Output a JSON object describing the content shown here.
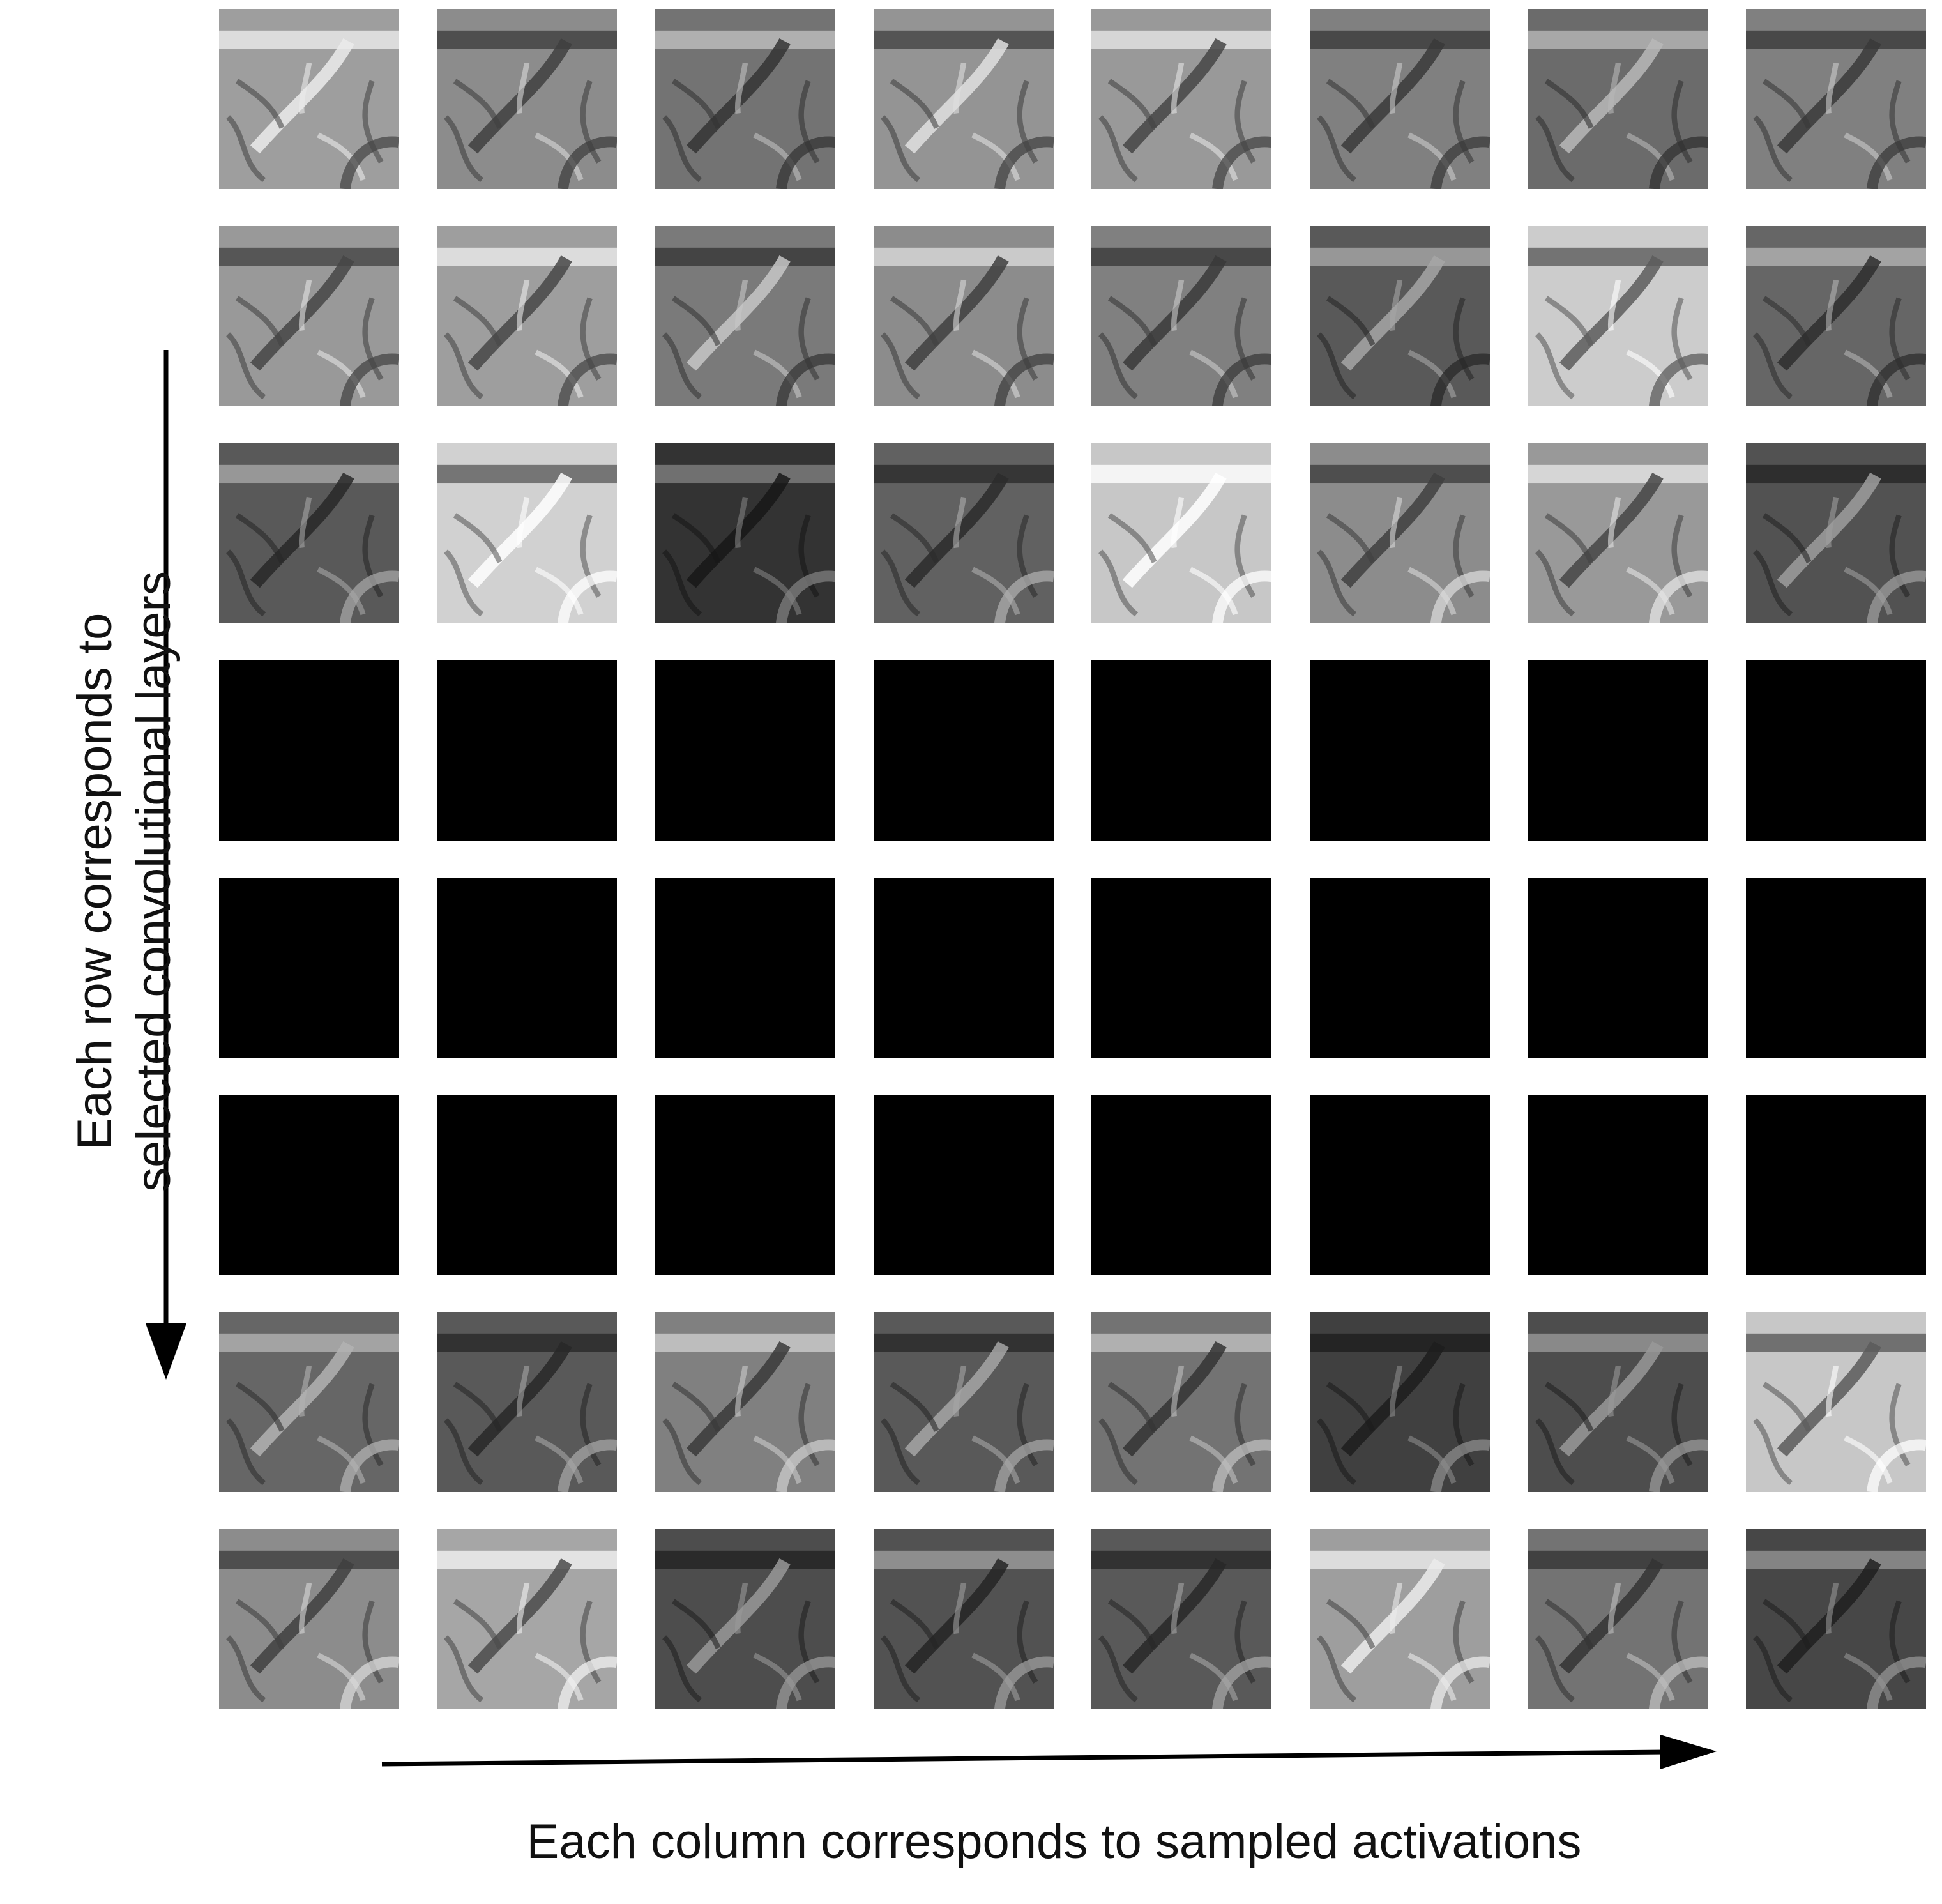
{
  "labels": {
    "rows_line1": "Each row corresponds to",
    "rows_line2": "selected convolutional layers",
    "columns": "Each column corresponds to sampled activations"
  },
  "grid": {
    "rows": 8,
    "columns": 8,
    "tile_tones": [
      [
        0.62,
        0.55,
        0.45,
        0.58,
        0.6,
        0.5,
        0.42,
        0.5
      ],
      [
        0.6,
        0.62,
        0.48,
        0.55,
        0.5,
        0.35,
        0.8,
        0.4
      ],
      [
        0.35,
        0.82,
        0.2,
        0.38,
        0.78,
        0.55,
        0.6,
        0.32
      ],
      [
        0.0,
        0.0,
        0.0,
        0.0,
        0.0,
        0.0,
        0.0,
        0.0
      ],
      [
        0.0,
        0.0,
        0.0,
        0.0,
        0.0,
        0.0,
        0.0,
        0.0
      ],
      [
        0.0,
        0.0,
        0.0,
        0.0,
        0.0,
        0.0,
        0.0,
        0.0
      ],
      [
        0.4,
        0.35,
        0.5,
        0.35,
        0.45,
        0.25,
        0.3,
        0.78
      ],
      [
        0.55,
        0.65,
        0.3,
        0.32,
        0.35,
        0.62,
        0.45,
        0.28
      ]
    ]
  },
  "colors": {
    "background": "#ffffff",
    "text": "#111111",
    "arrow": "#000000",
    "inactive_tile": "#000000"
  }
}
